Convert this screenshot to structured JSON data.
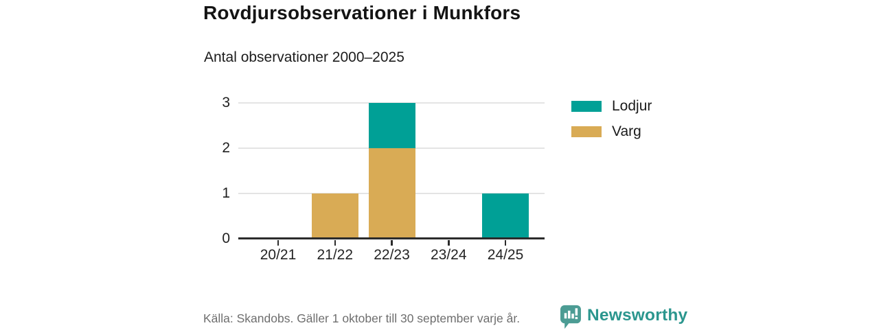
{
  "chart_data": {
    "type": "bar",
    "stacked": true,
    "title": "Rovdjursobservationer i Munkfors",
    "subtitle": "Antal observationer 2000–2025",
    "categories": [
      "20/21",
      "21/22",
      "22/23",
      "23/24",
      "24/25"
    ],
    "series": [
      {
        "name": "Lodjur",
        "color": "#00a096",
        "values": [
          0,
          0,
          1,
          0,
          1
        ]
      },
      {
        "name": "Varg",
        "color": "#d9ab55",
        "values": [
          0,
          1,
          2,
          0,
          0
        ]
      }
    ],
    "xlabel": "",
    "ylabel": "",
    "ylim": [
      0,
      3
    ],
    "yticks": [
      0,
      1,
      2,
      3
    ],
    "grid": true,
    "legend_position": "right"
  },
  "footer": {
    "source": "Källa: Skandobs. Gäller 1 oktober till 30 september varje år.",
    "brand": "Newsworthy"
  },
  "colors": {
    "grid": "#e4e4e4",
    "axis": "#2b2b2b",
    "brand_text": "#2b968e",
    "logo_bubble": "#4c9c94"
  },
  "icons": {
    "logo": "newsworthy-speech-bubble-with-bar-chart-and-exclamation"
  }
}
